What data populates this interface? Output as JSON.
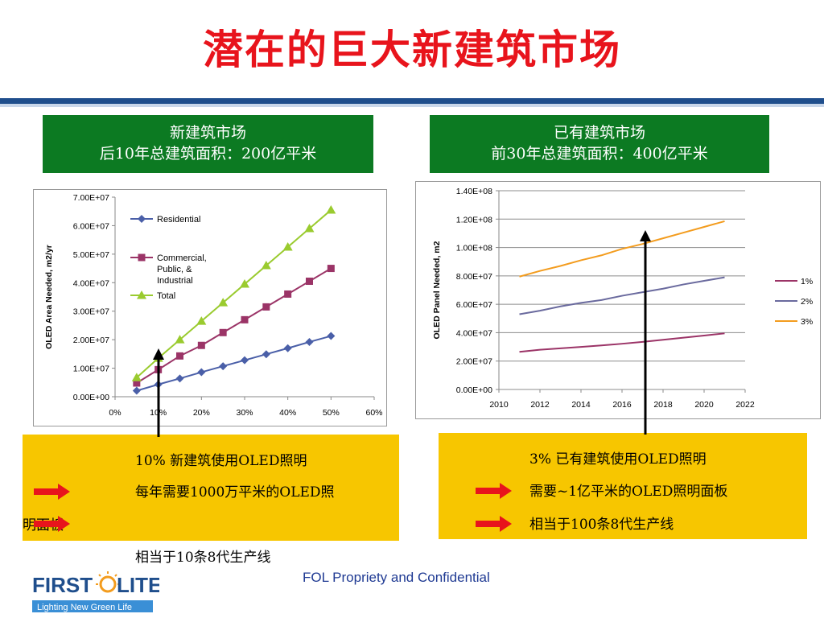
{
  "slide": {
    "title": "潜在的巨大新建筑市场",
    "footer": "FOL Propriety and Confidential"
  },
  "logo": {
    "name": "FIRSTOLITE",
    "tagline": "Lighting New Green Life"
  },
  "left_header": {
    "line1": "新建筑市场",
    "line2": "后10年总建筑面积：200亿平米"
  },
  "right_header": {
    "line1": "已有建筑市场",
    "line2": "前30年总建筑面积：400亿平米"
  },
  "left_note": {
    "line1": "10% 新建筑使用OLED照明",
    "line2a": "每年需要1000万平米的OLED照",
    "line2b": "明面板",
    "line3": "相当于10条8代生产线"
  },
  "right_note": {
    "line1": "3% 已有建筑使用OLED照明",
    "line2": "需要~1亿平米的OLED照明面板",
    "line3": "相当于100条8代生产线"
  },
  "colors": {
    "title": "#e8141c",
    "green_header": "#0c7a22",
    "note_bg": "#f7c600",
    "arrow": "#e8141c"
  },
  "chart_data": [
    {
      "type": "line",
      "ylabel": "OLED Area Needed, m2/yr",
      "xlim": [
        0,
        0.6
      ],
      "ylim": [
        0,
        70000000
      ],
      "x_ticks": [
        "0%",
        "10%",
        "20%",
        "30%",
        "40%",
        "50%",
        "60%"
      ],
      "y_ticks": [
        "0.00E+00",
        "1.00E+07",
        "2.00E+07",
        "3.00E+07",
        "4.00E+07",
        "5.00E+07",
        "6.00E+07",
        "7.00E+07"
      ],
      "x": [
        0.05,
        0.1,
        0.15,
        0.2,
        0.25,
        0.3,
        0.35,
        0.4,
        0.45,
        0.5
      ],
      "legend_position": "inside-top-left",
      "series": [
        {
          "name": "Residential",
          "color": "#4a5fa8",
          "marker": "diamond",
          "values": [
            2100000,
            4300000,
            6400000,
            8600000,
            10700000,
            12800000,
            14900000,
            17000000,
            19200000,
            21300000
          ]
        },
        {
          "name": "Commercial, Public, & Industrial",
          "color": "#9b3467",
          "marker": "square",
          "values": [
            4800000,
            9500000,
            14300000,
            18000000,
            22500000,
            27000000,
            31500000,
            36000000,
            40500000,
            45000000
          ]
        },
        {
          "name": "Total",
          "color": "#9acb2f",
          "marker": "triangle",
          "values": [
            6700000,
            13500000,
            20000000,
            26500000,
            33000000,
            39500000,
            46000000,
            52500000,
            59000000,
            65500000
          ]
        }
      ]
    },
    {
      "type": "line",
      "ylabel": "OLED Panel Needed, m2",
      "xlim": [
        2010,
        2022
      ],
      "ylim": [
        0,
        140000000
      ],
      "x_ticks": [
        "2010",
        "2012",
        "2014",
        "2016",
        "2018",
        "2020",
        "2022"
      ],
      "y_ticks": [
        "0.00E+00",
        "2.00E+07",
        "4.00E+07",
        "6.00E+07",
        "8.00E+07",
        "1.00E+08",
        "1.20E+08",
        "1.40E+08"
      ],
      "x": [
        2011,
        2012,
        2013,
        2014,
        2015,
        2016,
        2017,
        2018,
        2019,
        2020,
        2021
      ],
      "legend_position": "right",
      "series": [
        {
          "name": "1%",
          "color": "#9b3467",
          "values": [
            26500000,
            28000000,
            29000000,
            30000000,
            31000000,
            32200000,
            33500000,
            35000000,
            36500000,
            38000000,
            39500000
          ]
        },
        {
          "name": "2%",
          "color": "#6a6a9e",
          "values": [
            53000000,
            55500000,
            58500000,
            61000000,
            63000000,
            66000000,
            68500000,
            71000000,
            74000000,
            76500000,
            79000000
          ]
        },
        {
          "name": "3%",
          "color": "#f39c1e",
          "values": [
            79500000,
            83500000,
            87000000,
            91000000,
            94500000,
            99000000,
            102500000,
            106500000,
            110500000,
            114500000,
            118500000
          ]
        }
      ]
    }
  ]
}
